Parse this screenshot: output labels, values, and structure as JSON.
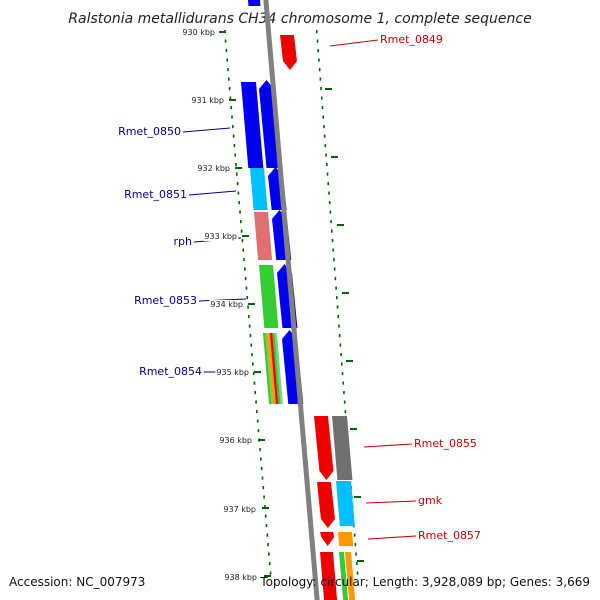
{
  "title": "Ralstonia metallidurans CH34 chromosome 1, complete sequence",
  "footer": {
    "accession": "Accession: NC_007973",
    "topology": "Topology: circular; Length: 3,928,089 bp; Genes: 3,669"
  },
  "ticks": [
    "930 kbp",
    "931 kbp",
    "932 kbp",
    "933 kbp",
    "934 kbp",
    "935 kbp",
    "936 kbp",
    "937 kbp",
    "938 kbp"
  ],
  "gene_labels": {
    "left": [
      "Rmet_0850",
      "Rmet_0851",
      "rph",
      "Rmet_0853",
      "Rmet_0854"
    ],
    "right": [
      "Rmet_0849",
      "Rmet_0855",
      "gmk",
      "Rmet_0857"
    ]
  },
  "colors": {
    "left_label": "#00008b",
    "right_label": "#cc0000",
    "backbone": "#808080",
    "tick": "#006400",
    "blue": "#0000ee",
    "cyan": "#00bfff",
    "salmon": "#e07070",
    "green": "#33cc33",
    "red": "#ee0000",
    "gray": "#707070",
    "orange": "#ff9900"
  }
}
